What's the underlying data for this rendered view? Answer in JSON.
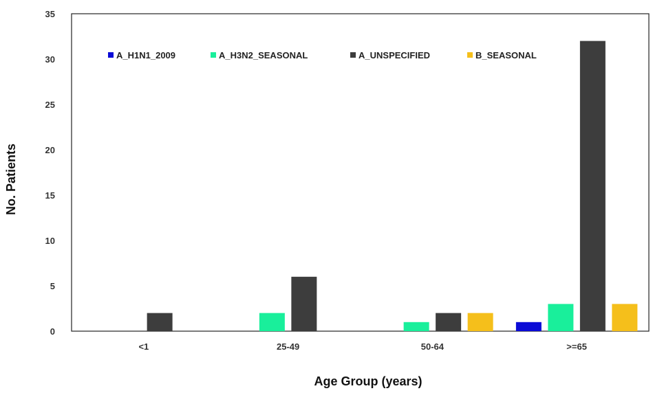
{
  "chart_data": {
    "type": "bar",
    "title": "",
    "xlabel": "Age Group (years)",
    "ylabel": "No. Patients",
    "ylim": [
      0,
      35
    ],
    "yticks": [
      0,
      5,
      10,
      15,
      20,
      25,
      30,
      35
    ],
    "grid": false,
    "legend_position": "top",
    "categories": [
      "<1",
      "25-49",
      "50-64",
      ">=65"
    ],
    "series": [
      {
        "name": "A_H1N1_2009",
        "color": "#0b0bd6",
        "values": [
          0,
          0,
          0,
          1
        ]
      },
      {
        "name": "A_H3N2_SEASONAL",
        "color": "#19ef9b",
        "values": [
          0,
          2,
          1,
          3
        ]
      },
      {
        "name": "A_UNSPECIFIED",
        "color": "#3d3d3d",
        "values": [
          2,
          6,
          2,
          32
        ]
      },
      {
        "name": "B_SEASONAL",
        "color": "#f5bf1b",
        "values": [
          0,
          0,
          2,
          3
        ]
      }
    ]
  }
}
